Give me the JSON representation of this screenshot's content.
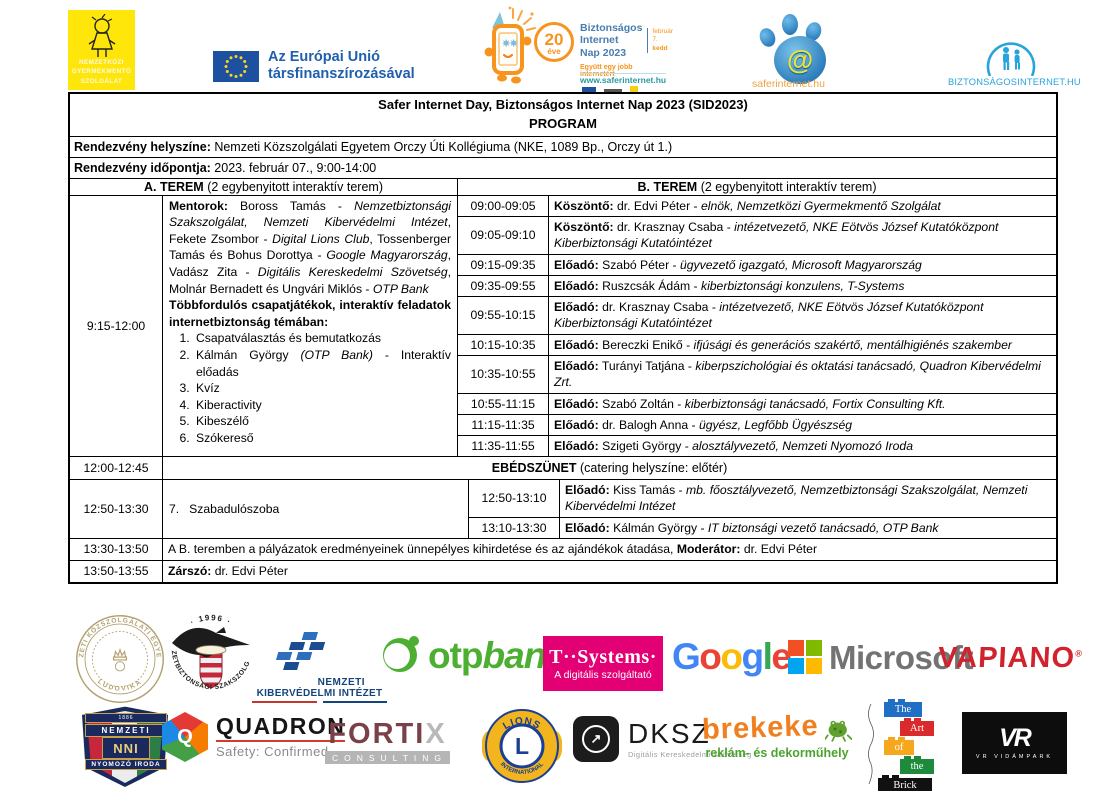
{
  "header": {
    "ngysz": {
      "lines": [
        "NEMZETKÖZI",
        "GYERMEKMENTŐ",
        "SZOLGÁLAT"
      ],
      "bg": "#ffe60a"
    },
    "eu": {
      "line1": "Az Európai Unió",
      "line2": "társfinanszírozásával",
      "flag_blue": "#1e50a0",
      "star_yellow": "#ffd617"
    },
    "sid": {
      "badge_num": "20",
      "badge_sub": "éve",
      "title_lines": [
        "Biztonságos",
        "Internet",
        "Nap 2023"
      ],
      "date_line1": "február 7.",
      "date_line2": "kedd",
      "slogan": "Együtt egy jobb internetért",
      "url": "www.saferinternet.hu",
      "orange": "#f7941e",
      "blue": "#4a7db1",
      "teal": "#2a9aa0"
    },
    "safer": {
      "at": "@",
      "label": "saferinternet.hu",
      "blue": "#1565ad",
      "orange": "#f0a23c"
    },
    "bizt": {
      "label": "BIZTONSÁGOSINTERNET.HU",
      "blue": "#29a3dc"
    }
  },
  "program": {
    "title": "Safer Internet Day, Biztonságos Internet Nap 2023 (SID2023)",
    "subtitle": "PROGRAM",
    "venue_label": "Rendezvény helyszíne:",
    "venue": " Nemzeti Közszolgálati Egyetem Orczy Úti Kollégiuma (NKE, 1089 Bp., Orczy út 1.)",
    "date_label": "Rendezvény időpontja:",
    "date": " 2023. február 07., 9:00-14:00",
    "room_a": {
      "title": "A. TEREM",
      "subtitle": " (2 egybenyitott interaktív terem)",
      "time": "9:15-12:00",
      "paragraphs": [
        {
          "segments": [
            {
              "t": "Mentorok: ",
              "b": true
            },
            {
              "t": "Boross Tamás - "
            },
            {
              "t": "Nemzetbiztonsági Szakszolgálat, Nemzeti Kibervédelmi Intézet",
              "i": true
            },
            {
              "t": ", Fekete Zsombor - "
            },
            {
              "t": "Digital Lions Club",
              "i": true
            },
            {
              "t": ", Tossenberger Tamás és Bohus Dorottya - "
            },
            {
              "t": "Google Magyarország",
              "i": true
            },
            {
              "t": ", Vadász Zita - "
            },
            {
              "t": "Digitális Kereskedelmi Szövetség",
              "i": true
            },
            {
              "t": ", Molnár Bernadett és Ungvári Miklós - "
            },
            {
              "t": "OTP Bank",
              "i": true
            }
          ]
        },
        {
          "segments": [
            {
              "t": "Többfordulós csapatjátékok, interaktív feladatok internetbiztonság témában:",
              "b": true
            }
          ]
        }
      ],
      "list": [
        {
          "segments": [
            {
              "t": "Csapatválasztás és bemutatkozás"
            }
          ]
        },
        {
          "segments": [
            {
              "t": "Kálmán György "
            },
            {
              "t": "(OTP Bank)",
              "i": true
            },
            {
              "t": " - Interaktív előadás"
            }
          ]
        },
        {
          "segments": [
            {
              "t": "Kvíz"
            }
          ]
        },
        {
          "segments": [
            {
              "t": "Kiberactivity"
            }
          ]
        },
        {
          "segments": [
            {
              "t": "Kibeszélő"
            }
          ]
        },
        {
          "segments": [
            {
              "t": "Szókereső"
            }
          ]
        }
      ]
    },
    "room_b": {
      "title": "B. TEREM",
      "subtitle": " (2 egybenyitott interaktív terem)",
      "rows": [
        {
          "time": "09:00-09:05",
          "h": "h1",
          "segments": [
            {
              "t": "Köszöntő:",
              "b": true
            },
            {
              "t": " dr. Edvi Péter - "
            },
            {
              "t": "elnök, Nemzetközi Gyermekmentő Szolgálat",
              "i": true
            }
          ]
        },
        {
          "time": "09:05-09:10",
          "h": "h2",
          "segments": [
            {
              "t": "Köszöntő:",
              "b": true
            },
            {
              "t": " dr. Krasznay Csaba - "
            },
            {
              "t": "intézetvezető, NKE Eötvös József Kutatóközpont Kiberbiztonsági Kutatóintézet",
              "i": true
            }
          ]
        },
        {
          "time": "09:15-09:35",
          "h": "h1",
          "segments": [
            {
              "t": "Előadó:",
              "b": true
            },
            {
              "t": " Szabó Péter - "
            },
            {
              "t": "ügyvezető igazgató, Microsoft Magyarország",
              "i": true
            }
          ]
        },
        {
          "time": "09:35-09:55",
          "h": "h1",
          "segments": [
            {
              "t": "Előadó:",
              "b": true
            },
            {
              "t": " Ruszcsák Ádám - "
            },
            {
              "t": "kiberbiztonsági konzulens, T-Systems",
              "i": true
            }
          ]
        },
        {
          "time": "09:55-10:15",
          "h": "h2",
          "segments": [
            {
              "t": "Előadó:",
              "b": true
            },
            {
              "t": " dr. Krasznay Csaba - "
            },
            {
              "t": "intézetvezető, NKE Eötvös József Kutatóközpont Kiberbiztonsági Kutatóintézet",
              "i": true
            }
          ]
        },
        {
          "time": "10:15-10:35",
          "h": "h1",
          "segments": [
            {
              "t": "Előadó:",
              "b": true
            },
            {
              "t": " Bereczki Enikő - "
            },
            {
              "t": "ifjúsági és generációs szakértő, mentálhigiénés szakember",
              "i": true
            }
          ]
        },
        {
          "time": "10:35-10:55",
          "h": "h2",
          "segments": [
            {
              "t": "Előadó:",
              "b": true
            },
            {
              "t": " Turányi Tatjána - "
            },
            {
              "t": "kiberpszichológiai és oktatási tanácsadó, Quadron Kibervédelmi Zrt.",
              "i": true
            }
          ]
        },
        {
          "time": "10:55-11:15",
          "h": "h1",
          "segments": [
            {
              "t": "Előadó:",
              "b": true
            },
            {
              "t": " Szabó Zoltán - "
            },
            {
              "t": "kiberbiztonsági tanácsadó, Fortix Consulting Kft.",
              "i": true
            }
          ]
        },
        {
          "time": "11:15-11:35",
          "h": "h1",
          "segments": [
            {
              "t": "Előadó:",
              "b": true
            },
            {
              "t": " dr. Balogh Anna - "
            },
            {
              "t": "ügyész, Legfőbb Ügyészség",
              "i": true
            }
          ]
        },
        {
          "time": "11:35-11:55",
          "h": "h1",
          "segments": [
            {
              "t": "Előadó:",
              "b": true
            },
            {
              "t": " Szigeti György - "
            },
            {
              "t": "alosztályvezető, Nemzeti Nyomozó Iroda",
              "i": true
            }
          ]
        }
      ]
    },
    "lunch": {
      "time": "12:00-12:45",
      "label": "EBÉDSZÜNET",
      "note": " (catering helyszíne: előtér)"
    },
    "afternoon": {
      "time": "12:50-13:30",
      "room_a_item_no": "7.",
      "room_a_item": "Szabadulószoba",
      "rows": [
        {
          "time": "12:50-13:10",
          "segments": [
            {
              "t": "Előadó:",
              "b": true
            },
            {
              "t": " Kiss Tamás - "
            },
            {
              "t": "mb. főosztályvezető, Nemzetbiztonsági Szakszolgálat, Nemzeti Kibervédelmi Intézet",
              "i": true
            }
          ]
        },
        {
          "time": "13:10-13:30",
          "segments": [
            {
              "t": "Előadó:",
              "b": true
            },
            {
              "t": " Kálmán György - "
            },
            {
              "t": "IT biztonsági vezető tanácsadó, OTP Bank",
              "i": true
            }
          ]
        }
      ]
    },
    "closing_rows": [
      {
        "time": "13:30-13:50",
        "segments": [
          {
            "t": "A B. teremben a pályázatok eredményeinek ünnepélyes kihirdetése és az ajándékok átadása, "
          },
          {
            "t": "Moderátor:",
            "b": true
          },
          {
            "t": " dr. Edvi Péter"
          }
        ]
      },
      {
        "time": "13:50-13:55",
        "segments": [
          {
            "t": "Zárszó:",
            "b": true
          },
          {
            "t": " dr. Edvi Péter"
          }
        ]
      }
    ]
  },
  "footer": {
    "ludovika": {
      "arc_top": "NEMZETI KÖZSZOLGÁLATI EGYETEM",
      "arc_bottom": "LUDOVIKA",
      "gold": "#b3a271"
    },
    "nbsz": {
      "year": "· 1996 ·",
      "around": "NEMZETBIZTONSÁGI SZAKSZOLGÁLAT"
    },
    "nki": {
      "line1": "NEMZETI",
      "line2": "KIBERVÉDELMI INTÉZET",
      "blue": "#14457c",
      "bar_red": "#c0392b",
      "bar_blue": "#14457c"
    },
    "otp": {
      "part1": "otp",
      "part2": "bank",
      "green": "#4caf32"
    },
    "tsystems": {
      "brand": "T··Systems·",
      "tagline": "A digitális szolgáltató",
      "magenta": "#e20074"
    },
    "google": {
      "text": "Google",
      "colors": [
        "#4285F4",
        "#EA4335",
        "#FBBC05",
        "#4285F4",
        "#34A853",
        "#EA4335"
      ]
    },
    "microsoft": {
      "text": "Microsoft",
      "squares": [
        "#F25022",
        "#7FBA00",
        "#00A4EF",
        "#FFB900"
      ],
      "gray": "#737373"
    },
    "vapiano": {
      "text": "VAPIANO",
      "reg": "®",
      "red": "#d0232e"
    },
    "nni": {
      "ribbon_top": "1886",
      "top": "NEMZETI",
      "mid": "NNI",
      "bottom": "NYOMOZÓ IRODA",
      "navy": "#1b2a5e"
    },
    "quadron": {
      "letter": "Q",
      "brand": "QUADRON",
      "tagline": "Safety: Confirmed"
    },
    "fortix": {
      "brand": "FORTI",
      "x": "X",
      "sub": "CONSULTING",
      "maroon": "#7b4149"
    },
    "lions": {
      "top": "LIONS",
      "letter": "L",
      "bottom": "INTERNATIONAL",
      "blue": "#1b3f94",
      "gold": "#f2b51d"
    },
    "dksz": {
      "arrow": "↗",
      "brand": "DKSZ",
      "tagline": "Digitális Kereskedelmi Szövetség"
    },
    "brekeke": {
      "brand": "brekeke",
      "tagline": "reklám- és dekorműhely",
      "orange": "#f07f1f",
      "green": "#4ba32e"
    },
    "artbrick": {
      "bricks": [
        "The",
        "Art",
        "of",
        "the",
        "Brick"
      ],
      "colors": [
        "#1f6fc4",
        "#d92b2b",
        "#f5a81c",
        "#1d8a3c",
        "#111111"
      ],
      "widths": [
        38,
        34,
        30,
        34,
        54
      ],
      "offsets": [
        6,
        22,
        6,
        22,
        0
      ]
    },
    "vr": {
      "monogram": "VR",
      "label": "VR VIDÁMPARK"
    }
  }
}
